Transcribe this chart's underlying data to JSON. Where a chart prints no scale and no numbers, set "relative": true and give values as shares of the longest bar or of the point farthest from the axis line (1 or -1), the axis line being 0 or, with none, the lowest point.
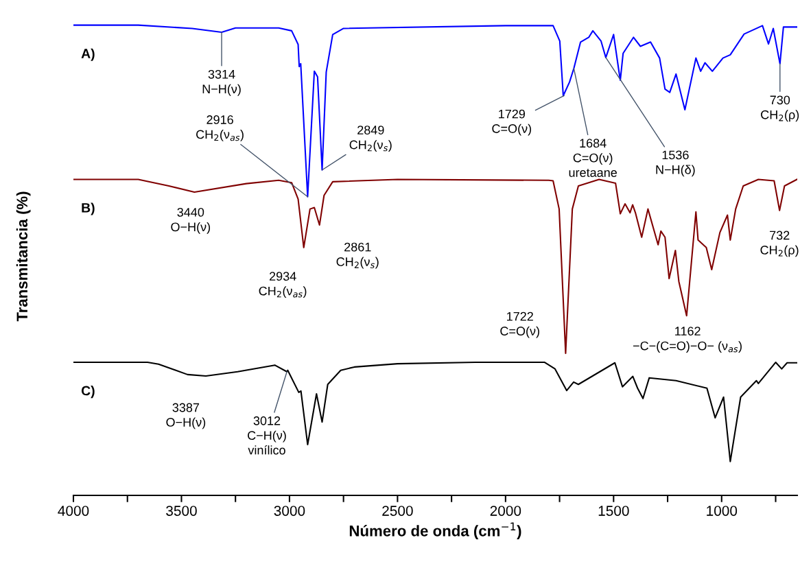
{
  "chart_data": {
    "type": "line",
    "relative": true,
    "tick_labels": "x",
    "xlabel": "Número de onda (cm$^{−1}$)",
    "ylabel": "Transmitancia (%)",
    "xlim": [
      4000,
      650
    ],
    "xticks": [
      4000,
      {
        "value": 3750,
        "label": null
      },
      3500,
      {
        "value": 3250,
        "label": null
      },
      3000,
      {
        "value": 2750,
        "label": null
      },
      2500,
      {
        "value": 2250,
        "label": null
      },
      2000,
      {
        "value": 1750,
        "label": null
      },
      1500,
      {
        "value": 1250,
        "label": null
      },
      1000,
      {
        "value": 750,
        "label": null
      }
    ],
    "series": [
      {
        "name": "A)",
        "color": "#0000ff",
        "x": [
          4000,
          3700,
          3450,
          3314,
          3250,
          3050,
          2990,
          2960,
          2955,
          2948,
          2916,
          2885,
          2870,
          2849,
          2830,
          2800,
          2750,
          2000,
          1780,
          1749,
          1733,
          1704,
          1684,
          1653,
          1615,
          1596,
          1558,
          1536,
          1500,
          1475,
          1469,
          1456,
          1408,
          1376,
          1329,
          1287,
          1262,
          1240,
          1211,
          1170,
          1119,
          1097,
          1077,
          1043,
          994,
          960,
          896,
          811,
          783,
          761,
          730,
          714,
          653
        ],
        "values": [
          1.0,
          1.0,
          0.993,
          0.985,
          0.994,
          0.994,
          0.988,
          0.959,
          0.912,
          0.918,
          0.635,
          0.902,
          0.89,
          0.692,
          0.9,
          0.98,
          0.993,
          0.999,
          0.999,
          0.966,
          0.85,
          0.879,
          0.908,
          0.964,
          0.974,
          0.988,
          0.966,
          0.931,
          0.98,
          0.901,
          0.883,
          0.94,
          0.974,
          0.955,
          0.964,
          0.93,
          0.864,
          0.857,
          0.896,
          0.82,
          0.93,
          0.902,
          0.92,
          0.902,
          0.93,
          0.937,
          0.981,
          0.999,
          0.96,
          0.993,
          0.918,
          0.996,
          0.996
        ]
      },
      {
        "name": "B)",
        "color": "#800000",
        "x": [
          4000,
          3700,
          3558,
          3440,
          3200,
          3050,
          2990,
          2960,
          2934,
          2905,
          2885,
          2861,
          2840,
          2800,
          2500,
          1800,
          1780,
          1752,
          1722,
          1691,
          1663,
          1567,
          1491,
          1469,
          1447,
          1424,
          1412,
          1399,
          1370,
          1341,
          1294,
          1281,
          1262,
          1243,
          1214,
          1198,
          1162,
          1119,
          1109,
          1071,
          1046,
          1008,
          973,
          960,
          935,
          900,
          830,
          757,
          732,
          709,
          651
        ],
        "values": [
          0.672,
          0.672,
          0.658,
          0.645,
          0.663,
          0.67,
          0.665,
          0.63,
          0.527,
          0.609,
          0.612,
          0.575,
          0.638,
          0.667,
          0.672,
          0.67,
          0.669,
          0.609,
          0.302,
          0.609,
          0.658,
          0.672,
          0.664,
          0.599,
          0.62,
          0.601,
          0.618,
          0.601,
          0.549,
          0.609,
          0.533,
          0.562,
          0.549,
          0.461,
          0.521,
          0.455,
          0.382,
          0.603,
          0.543,
          0.527,
          0.48,
          0.559,
          0.596,
          0.543,
          0.609,
          0.658,
          0.672,
          0.669,
          0.606,
          0.658,
          0.672
        ]
      },
      {
        "name": "C)",
        "color": "#000000",
        "x": [
          4000,
          3657,
          3606,
          3472,
          3387,
          3240,
          3068,
          3012,
          3008,
          2957,
          2947,
          2916,
          2875,
          2849,
          2823,
          2763,
          2700,
          2500,
          2140,
          1819,
          1771,
          1717,
          1685,
          1663,
          1494,
          1459,
          1411,
          1389,
          1364,
          1335,
          1211,
          1068,
          1030,
          991,
          960,
          912,
          839,
          830,
          750,
          722,
          697,
          651
        ],
        "values": [
          0.283,
          0.283,
          0.279,
          0.257,
          0.254,
          0.263,
          0.277,
          0.263,
          0.266,
          0.219,
          0.222,
          0.108,
          0.216,
          0.156,
          0.236,
          0.266,
          0.273,
          0.28,
          0.283,
          0.283,
          0.269,
          0.223,
          0.241,
          0.236,
          0.282,
          0.231,
          0.253,
          0.228,
          0.206,
          0.25,
          0.244,
          0.228,
          0.165,
          0.209,
          0.072,
          0.209,
          0.244,
          0.238,
          0.283,
          0.269,
          0.282,
          0.282
        ]
      }
    ],
    "annotations": [
      {
        "text": "3314\nN−H(ν)",
        "x": 3314,
        "y": 0.985
      },
      {
        "text": "2916\nCH$_{2}$(ν$_{as}$)",
        "x": 2916,
        "y": 0.635
      },
      {
        "text": "2849\nCH$_{2}$(ν$_{s}$)",
        "x": 2849,
        "y": 0.692
      },
      {
        "text": "1729\nC=O(ν)",
        "x": 1729,
        "y": 0.85
      },
      {
        "text": "1684\nC=O(ν)\nuretaane",
        "x": 1684,
        "y": 0.908
      },
      {
        "text": "1536\nN−H(δ)",
        "x": 1536,
        "y": 0.931
      },
      {
        "text": "730\nCH$_{2}$(ρ)",
        "x": 730,
        "y": 0.918
      },
      {
        "text": "3440\nO−H(ν)",
        "x": 3440,
        "y": 0.645
      },
      {
        "text": "2934\nCH$_{2}$(ν$_{as}$)",
        "x": 2934,
        "y": 0.527
      },
      {
        "text": "2861\nCH$_{2}$(ν$_{s}$)",
        "x": 2861,
        "y": 0.575
      },
      {
        "text": "732\nCH$_{2}$(ρ)",
        "x": 732,
        "y": 0.606
      },
      {
        "text": "1722\nC=O(ν)",
        "x": 1722,
        "y": 0.302
      },
      {
        "text": "1162\n−C−(C=O)−O− (ν$_{as}$)",
        "x": 1162,
        "y": 0.382
      },
      {
        "text": "3387\nO−H(ν)",
        "x": 3387,
        "y": 0.254
      },
      {
        "text": "3012\nC−H(ν)\nvinílico",
        "x": 3012,
        "y": 0.263
      }
    ]
  }
}
